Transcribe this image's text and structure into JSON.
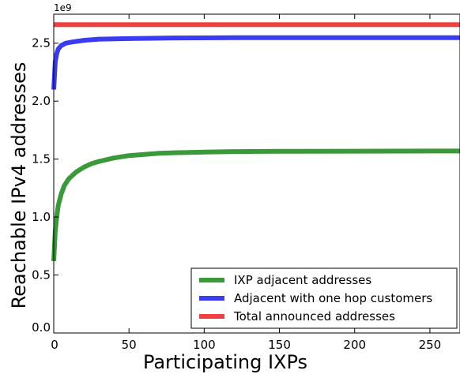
{
  "chart_data": {
    "type": "line",
    "title": "",
    "xlabel": "Participating IXPs",
    "ylabel": "Reachable IPv4 addresses",
    "y_exponent_label": "1e9",
    "xlim": [
      0,
      270
    ],
    "ylim": [
      0,
      2.75
    ],
    "x_ticks": [
      {
        "value": 0,
        "label": "0"
      },
      {
        "value": 50,
        "label": "50"
      },
      {
        "value": 100,
        "label": "100"
      },
      {
        "value": 150,
        "label": "150"
      },
      {
        "value": 200,
        "label": "200"
      },
      {
        "value": 250,
        "label": "250"
      }
    ],
    "y_ticks": [
      {
        "value": 0.0,
        "label": "0.0"
      },
      {
        "value": 0.5,
        "label": "0.5"
      },
      {
        "value": 1.0,
        "label": "1.0"
      },
      {
        "value": 1.5,
        "label": "1.5"
      },
      {
        "value": 2.0,
        "label": "2.0"
      },
      {
        "value": 2.5,
        "label": "2.5"
      }
    ],
    "grid": false,
    "legend_position": "lower-right",
    "series": [
      {
        "name": "IXP adjacent addresses",
        "color": "#3a9a3a",
        "x": [
          0,
          1,
          2,
          3,
          5,
          7,
          10,
          15,
          20,
          25,
          30,
          40,
          50,
          60,
          70,
          80,
          100,
          120,
          150,
          200,
          250,
          270
        ],
        "y": [
          0.62,
          0.88,
          1.0,
          1.1,
          1.2,
          1.27,
          1.33,
          1.39,
          1.43,
          1.46,
          1.48,
          1.51,
          1.53,
          1.54,
          1.55,
          1.555,
          1.56,
          1.565,
          1.567,
          1.568,
          1.57,
          1.57
        ]
      },
      {
        "name": "Adjacent with one hop customers",
        "color": "#3b3bf0",
        "x": [
          0,
          1,
          2,
          3,
          5,
          8,
          12,
          20,
          30,
          50,
          80,
          120,
          200,
          270
        ],
        "y": [
          2.1,
          2.34,
          2.41,
          2.45,
          2.48,
          2.5,
          2.51,
          2.525,
          2.535,
          2.54,
          2.545,
          2.547,
          2.548,
          2.548
        ]
      },
      {
        "name": "Total announced addresses",
        "color": "#f04040",
        "x": [
          0,
          270
        ],
        "y": [
          2.66,
          2.66
        ]
      }
    ]
  }
}
